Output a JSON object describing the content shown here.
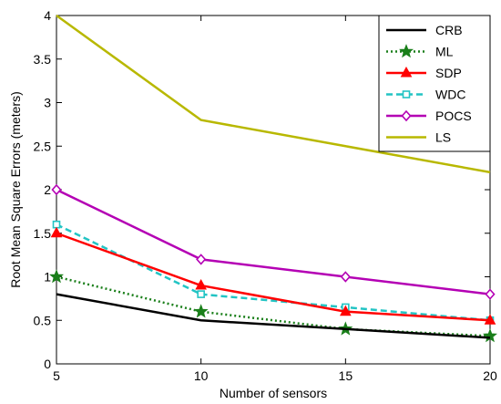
{
  "chart_data": {
    "type": "line",
    "title": "",
    "xlabel": "Number of sensors",
    "ylabel": "Root Mean Square Errors (meters)",
    "x": [
      5,
      10,
      15,
      20
    ],
    "xlim": [
      5,
      20
    ],
    "ylim": [
      0,
      4
    ],
    "xticks": [
      5,
      10,
      15,
      20
    ],
    "yticks": [
      0,
      0.5,
      1,
      1.5,
      2,
      2.5,
      3,
      3.5,
      4
    ],
    "grid": false,
    "legend_position": "top-right",
    "series": [
      {
        "name": "CRB",
        "values": [
          0.8,
          0.5,
          0.4,
          0.3
        ],
        "color": "#000000",
        "dash": "solid",
        "marker": "none"
      },
      {
        "name": "ML",
        "values": [
          1.0,
          0.6,
          0.4,
          0.32
        ],
        "color": "#1a7f1a",
        "dash": "dotted",
        "marker": "star"
      },
      {
        "name": "SDP",
        "values": [
          1.5,
          0.9,
          0.6,
          0.5
        ],
        "color": "#ff0000",
        "dash": "solid",
        "marker": "triangle"
      },
      {
        "name": "WDC",
        "values": [
          1.6,
          0.8,
          0.65,
          0.5
        ],
        "color": "#22c4c4",
        "dash": "dashed",
        "marker": "square"
      },
      {
        "name": "POCS",
        "values": [
          2.0,
          1.2,
          1.0,
          0.8
        ],
        "color": "#b400b4",
        "dash": "solid",
        "marker": "diamond"
      },
      {
        "name": "LS",
        "values": [
          4.0,
          2.8,
          2.5,
          2.2
        ],
        "color": "#b8b800",
        "dash": "solid",
        "marker": "none"
      }
    ]
  }
}
